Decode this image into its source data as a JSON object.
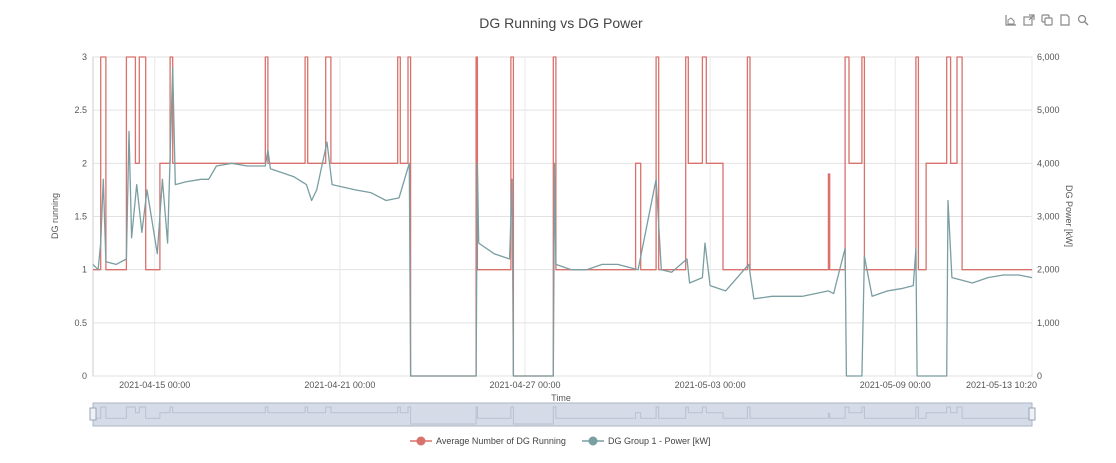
{
  "toolbar": {
    "icons": [
      "area-chart-icon",
      "popout-icon",
      "copy-icon",
      "document-icon",
      "zoom-icon"
    ]
  },
  "chart_data": {
    "type": "line",
    "title": "DG Running vs DG Power",
    "xlabel": "Time",
    "ylabel_left": "DG running",
    "ylabel_right": "DG Power [kW]",
    "ylim_left": [
      0,
      3
    ],
    "ylim_right": [
      0,
      6000
    ],
    "yticks_left": [
      "0",
      "0.5",
      "1",
      "1.5",
      "2",
      "2.5",
      "3"
    ],
    "yticks_right": [
      "0",
      "1,000",
      "2,000",
      "3,000",
      "4,000",
      "5,000",
      "6,000"
    ],
    "xlim": [
      "2021-04-13 00:00",
      "2021-05-13 10:20"
    ],
    "xticks": [
      "2021-04-15 00:00",
      "2021-04-21 00:00",
      "2021-04-27 00:00",
      "2021-05-03 00:00",
      "2021-05-09 00:00",
      "2021-05-13 10:20"
    ],
    "grid": true,
    "legend_position": "bottom-center",
    "range_slider": true,
    "series": [
      {
        "name": "Average Number of DG Running",
        "color": "#d9716c",
        "axis": "left",
        "points": [
          [
            "2021-04-13 00:00",
            1
          ],
          [
            "2021-04-13 06:00",
            1
          ],
          [
            "2021-04-13 06:00",
            3
          ],
          [
            "2021-04-13 10:00",
            3
          ],
          [
            "2021-04-13 10:00",
            1
          ],
          [
            "2021-04-14 02:00",
            1
          ],
          [
            "2021-04-14 02:00",
            3
          ],
          [
            "2021-04-14 09:00",
            3
          ],
          [
            "2021-04-14 09:00",
            2
          ],
          [
            "2021-04-14 12:00",
            2
          ],
          [
            "2021-04-14 12:00",
            3
          ],
          [
            "2021-04-14 17:00",
            3
          ],
          [
            "2021-04-14 17:00",
            1
          ],
          [
            "2021-04-15 04:00",
            1
          ],
          [
            "2021-04-15 04:00",
            2
          ],
          [
            "2021-04-15 12:00",
            2
          ],
          [
            "2021-04-15 12:00",
            3
          ],
          [
            "2021-04-15 14:00",
            3
          ],
          [
            "2021-04-15 14:00",
            2
          ],
          [
            "2021-04-18 14:00",
            2
          ],
          [
            "2021-04-18 14:00",
            3
          ],
          [
            "2021-04-18 16:00",
            3
          ],
          [
            "2021-04-18 16:00",
            2
          ],
          [
            "2021-04-19 21:00",
            2
          ],
          [
            "2021-04-19 21:00",
            3
          ],
          [
            "2021-04-19 23:00",
            3
          ],
          [
            "2021-04-19 23:00",
            2
          ],
          [
            "2021-04-20 13:00",
            2
          ],
          [
            "2021-04-20 13:00",
            3
          ],
          [
            "2021-04-20 17:00",
            3
          ],
          [
            "2021-04-20 17:00",
            2
          ],
          [
            "2021-04-22 21:00",
            2
          ],
          [
            "2021-04-22 21:00",
            3
          ],
          [
            "2021-04-22 23:00",
            3
          ],
          [
            "2021-04-22 23:00",
            2
          ],
          [
            "2021-04-23 05:00",
            2
          ],
          [
            "2021-04-23 05:00",
            3
          ],
          [
            "2021-04-23 07:00",
            3
          ],
          [
            "2021-04-23 07:00",
            0
          ],
          [
            "2021-04-25 10:00",
            0
          ],
          [
            "2021-04-25 10:00",
            3
          ],
          [
            "2021-04-25 11:00",
            3
          ],
          [
            "2021-04-25 11:00",
            1
          ],
          [
            "2021-04-26 13:00",
            1
          ],
          [
            "2021-04-26 13:00",
            3
          ],
          [
            "2021-04-26 15:00",
            3
          ],
          [
            "2021-04-26 15:00",
            0
          ],
          [
            "2021-04-27 22:00",
            0
          ],
          [
            "2021-04-27 22:00",
            3
          ],
          [
            "2021-04-28 00:00",
            3
          ],
          [
            "2021-04-28 00:00",
            1
          ],
          [
            "2021-04-30 14:00",
            1
          ],
          [
            "2021-04-30 14:00",
            2
          ],
          [
            "2021-04-30 18:00",
            2
          ],
          [
            "2021-04-30 18:00",
            1
          ],
          [
            "2021-05-01 06:00",
            1
          ],
          [
            "2021-05-01 06:00",
            3
          ],
          [
            "2021-05-01 08:00",
            3
          ],
          [
            "2021-05-01 08:00",
            1
          ],
          [
            "2021-05-02 05:00",
            1
          ],
          [
            "2021-05-02 05:00",
            3
          ],
          [
            "2021-05-02 07:00",
            3
          ],
          [
            "2021-05-02 07:00",
            2
          ],
          [
            "2021-05-02 18:00",
            2
          ],
          [
            "2021-05-02 18:00",
            3
          ],
          [
            "2021-05-02 21:00",
            3
          ],
          [
            "2021-05-02 21:00",
            2
          ],
          [
            "2021-05-03 10:00",
            2
          ],
          [
            "2021-05-03 10:00",
            1
          ],
          [
            "2021-05-04 05:00",
            1
          ],
          [
            "2021-05-04 05:00",
            3
          ],
          [
            "2021-05-04 07:00",
            3
          ],
          [
            "2021-05-04 07:00",
            1
          ],
          [
            "2021-05-06 20:00",
            1
          ],
          [
            "2021-05-06 20:00",
            1.9
          ],
          [
            "2021-05-06 21:00",
            1.9
          ],
          [
            "2021-05-06 21:00",
            1
          ],
          [
            "2021-05-07 09:00",
            1
          ],
          [
            "2021-05-07 09:00",
            3
          ],
          [
            "2021-05-07 12:00",
            3
          ],
          [
            "2021-05-07 12:00",
            2
          ],
          [
            "2021-05-07 22:00",
            2
          ],
          [
            "2021-05-07 22:00",
            3
          ],
          [
            "2021-05-08 00:00",
            3
          ],
          [
            "2021-05-08 00:00",
            1
          ],
          [
            "2021-05-09 16:00",
            1
          ],
          [
            "2021-05-09 16:00",
            3
          ],
          [
            "2021-05-09 18:00",
            3
          ],
          [
            "2021-05-09 18:00",
            1
          ],
          [
            "2021-05-10 00:00",
            1
          ],
          [
            "2021-05-10 00:00",
            2
          ],
          [
            "2021-05-10 16:00",
            2
          ],
          [
            "2021-05-10 16:00",
            3
          ],
          [
            "2021-05-10 19:00",
            3
          ],
          [
            "2021-05-10 19:00",
            2
          ],
          [
            "2021-05-11 00:00",
            2
          ],
          [
            "2021-05-11 00:00",
            3
          ],
          [
            "2021-05-11 04:00",
            3
          ],
          [
            "2021-05-11 04:00",
            1
          ],
          [
            "2021-05-13 10:20",
            1
          ]
        ]
      },
      {
        "name": "DG Group 1 - Power [kW]",
        "color": "#7a9ea2",
        "axis": "right",
        "points": [
          [
            "2021-04-13 00:00",
            2100
          ],
          [
            "2021-04-13 04:00",
            2000
          ],
          [
            "2021-04-13 06:00",
            2500
          ],
          [
            "2021-04-13 08:00",
            3700
          ],
          [
            "2021-04-13 10:00",
            2150
          ],
          [
            "2021-04-13 18:00",
            2100
          ],
          [
            "2021-04-14 02:00",
            2200
          ],
          [
            "2021-04-14 04:00",
            4600
          ],
          [
            "2021-04-14 06:00",
            2600
          ],
          [
            "2021-04-14 10:00",
            3600
          ],
          [
            "2021-04-14 14:00",
            2700
          ],
          [
            "2021-04-14 18:00",
            3500
          ],
          [
            "2021-04-15 02:00",
            2300
          ],
          [
            "2021-04-15 06:00",
            3700
          ],
          [
            "2021-04-15 10:00",
            2500
          ],
          [
            "2021-04-15 14:00",
            5800
          ],
          [
            "2021-04-15 16:00",
            3600
          ],
          [
            "2021-04-16 00:00",
            3650
          ],
          [
            "2021-04-16 12:00",
            3700
          ],
          [
            "2021-04-16 18:00",
            3700
          ],
          [
            "2021-04-17 00:00",
            3950
          ],
          [
            "2021-04-17 12:00",
            4000
          ],
          [
            "2021-04-18 00:00",
            3950
          ],
          [
            "2021-04-18 14:00",
            3950
          ],
          [
            "2021-04-18 16:00",
            4250
          ],
          [
            "2021-04-18 18:00",
            3900
          ],
          [
            "2021-04-19 12:00",
            3750
          ],
          [
            "2021-04-19 22:00",
            3600
          ],
          [
            "2021-04-20 02:00",
            3300
          ],
          [
            "2021-04-20 06:00",
            3500
          ],
          [
            "2021-04-20 14:00",
            4400
          ],
          [
            "2021-04-20 18:00",
            3600
          ],
          [
            "2021-04-21 12:00",
            3500
          ],
          [
            "2021-04-22 00:00",
            3450
          ],
          [
            "2021-04-22 12:00",
            3300
          ],
          [
            "2021-04-22 22:00",
            3350
          ],
          [
            "2021-04-23 06:00",
            4000
          ],
          [
            "2021-04-23 07:00",
            0
          ],
          [
            "2021-04-25 10:00",
            0
          ],
          [
            "2021-04-25 11:00",
            4000
          ],
          [
            "2021-04-25 12:00",
            2500
          ],
          [
            "2021-04-26 00:00",
            2300
          ],
          [
            "2021-04-26 12:00",
            2200
          ],
          [
            "2021-04-26 14:00",
            3700
          ],
          [
            "2021-04-26 15:00",
            0
          ],
          [
            "2021-04-27 22:00",
            0
          ],
          [
            "2021-04-27 23:00",
            4000
          ],
          [
            "2021-04-28 00:00",
            2100
          ],
          [
            "2021-04-28 12:00",
            2000
          ],
          [
            "2021-04-29 00:00",
            2000
          ],
          [
            "2021-04-29 12:00",
            2100
          ],
          [
            "2021-04-30 00:00",
            2100
          ],
          [
            "2021-04-30 16:00",
            2000
          ],
          [
            "2021-05-01 06:00",
            3700
          ],
          [
            "2021-05-01 10:00",
            2000
          ],
          [
            "2021-05-01 18:00",
            1950
          ],
          [
            "2021-05-02 06:00",
            2200
          ],
          [
            "2021-05-02 08:00",
            1750
          ],
          [
            "2021-05-02 18:00",
            1850
          ],
          [
            "2021-05-02 20:00",
            2500
          ],
          [
            "2021-05-03 00:00",
            1700
          ],
          [
            "2021-05-03 12:00",
            1600
          ],
          [
            "2021-05-04 06:00",
            2100
          ],
          [
            "2021-05-04 10:00",
            1450
          ],
          [
            "2021-05-05 00:00",
            1500
          ],
          [
            "2021-05-05 12:00",
            1500
          ],
          [
            "2021-05-06 00:00",
            1500
          ],
          [
            "2021-05-06 20:00",
            1600
          ],
          [
            "2021-05-07 00:00",
            1550
          ],
          [
            "2021-05-07 09:00",
            2400
          ],
          [
            "2021-05-07 10:00",
            0
          ],
          [
            "2021-05-07 22:00",
            0
          ],
          [
            "2021-05-08 00:00",
            2250
          ],
          [
            "2021-05-08 06:00",
            1500
          ],
          [
            "2021-05-08 18:00",
            1600
          ],
          [
            "2021-05-09 06:00",
            1650
          ],
          [
            "2021-05-09 14:00",
            1700
          ],
          [
            "2021-05-09 16:00",
            2400
          ],
          [
            "2021-05-09 17:00",
            0
          ],
          [
            "2021-05-10 16:00",
            0
          ],
          [
            "2021-05-10 17:00",
            3300
          ],
          [
            "2021-05-10 20:00",
            1850
          ],
          [
            "2021-05-11 04:00",
            1800
          ],
          [
            "2021-05-11 12:00",
            1750
          ],
          [
            "2021-05-12 00:00",
            1850
          ],
          [
            "2021-05-12 12:00",
            1900
          ],
          [
            "2021-05-13 00:00",
            1900
          ],
          [
            "2021-05-13 10:20",
            1850
          ]
        ]
      }
    ]
  }
}
